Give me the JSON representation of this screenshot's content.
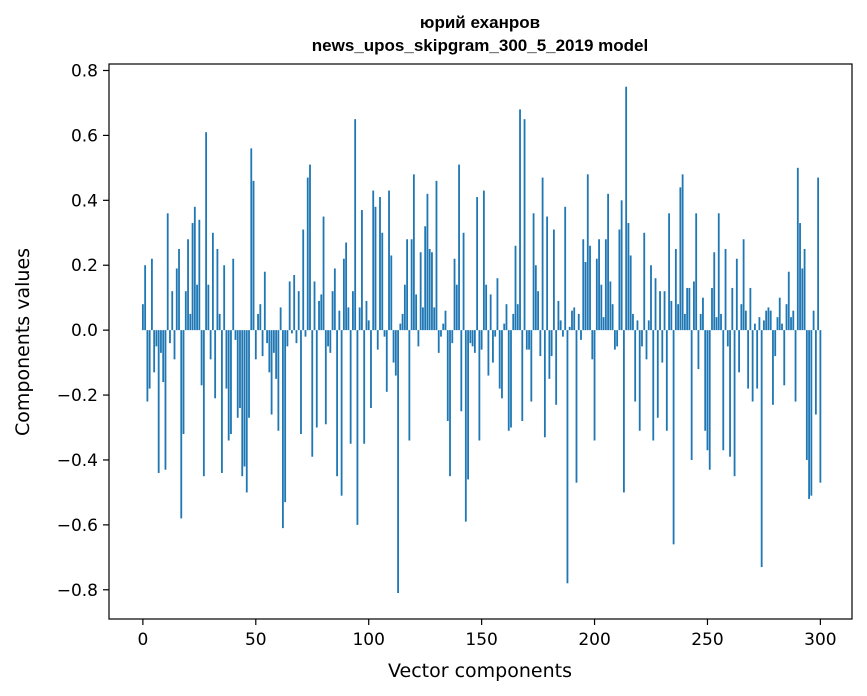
{
  "chart_data": {
    "type": "bar",
    "title_line1": "юрий еханров",
    "title_line2": "news_upos_skipgram_300_5_2019 model",
    "xlabel": "Vector components",
    "ylabel": "Components values",
    "xlim": [
      -15,
      314
    ],
    "ylim": [
      -0.89,
      0.82
    ],
    "xticks": [
      0,
      50,
      100,
      150,
      200,
      250,
      300
    ],
    "yticks": [
      -0.8,
      -0.6,
      -0.4,
      -0.2,
      0.0,
      0.2,
      0.4,
      0.6,
      0.8
    ],
    "ytick_labels": [
      "−0.8",
      "−0.6",
      "−0.4",
      "−0.2",
      "0.0",
      "0.2",
      "0.4",
      "0.6",
      "0.8"
    ],
    "bar_color": "#1f77b4",
    "values": [
      0.08,
      0.2,
      -0.22,
      -0.18,
      0.22,
      -0.13,
      -0.05,
      -0.44,
      -0.07,
      -0.16,
      -0.43,
      0.36,
      -0.04,
      0.12,
      -0.09,
      0.19,
      0.25,
      -0.58,
      -0.32,
      0.12,
      0.28,
      0.05,
      0.33,
      0.38,
      0.14,
      0.34,
      -0.17,
      -0.45,
      0.61,
      0.14,
      -0.09,
      0.3,
      -0.21,
      0.25,
      0.05,
      -0.44,
      0.2,
      -0.18,
      -0.34,
      -0.32,
      0.22,
      -0.03,
      -0.27,
      -0.24,
      -0.45,
      -0.42,
      -0.5,
      -0.27,
      0.56,
      0.46,
      -0.09,
      0.05,
      0.08,
      -0.08,
      0.18,
      -0.04,
      -0.13,
      -0.26,
      -0.07,
      -0.15,
      -0.31,
      0.07,
      -0.61,
      -0.53,
      -0.05,
      0.15,
      -0.01,
      0.17,
      -0.04,
      0.12,
      -0.32,
      0.31,
      -0.02,
      0.47,
      0.51,
      -0.39,
      0.15,
      -0.3,
      0.09,
      0.11,
      0.35,
      -0.29,
      -0.05,
      -0.07,
      0.12,
      0.19,
      -0.45,
      0.06,
      -0.51,
      0.22,
      0.27,
      0.07,
      -0.35,
      0.12,
      0.65,
      -0.6,
      0.07,
      0.37,
      -0.35,
      0.09,
      0.03,
      -0.24,
      0.43,
      0.38,
      -0.06,
      0.41,
      0.3,
      -0.02,
      -0.19,
      0.43,
      0.23,
      -0.1,
      -0.14,
      -0.81,
      0.02,
      0.05,
      0.14,
      0.28,
      -0.34,
      0.28,
      0.48,
      0.11,
      -0.05,
      0.24,
      0.07,
      0.32,
      0.42,
      0.25,
      0.24,
      0.07,
      0.46,
      -0.07,
      -0.02,
      0.02,
      0.06,
      -0.28,
      -0.45,
      -0.04,
      0.22,
      0.14,
      0.51,
      -0.25,
      0.3,
      -0.59,
      -0.46,
      -0.04,
      -0.05,
      -0.07,
      0.41,
      -0.34,
      -0.06,
      0.43,
      0.14,
      -0.14,
      0.11,
      -0.1,
      -0.02,
      0.16,
      -0.18,
      -0.21,
      0.02,
      0.08,
      -0.31,
      -0.3,
      0.05,
      0.26,
      0.08,
      0.68,
      -0.28,
      0.65,
      -0.06,
      -0.06,
      -0.22,
      0.36,
      0.2,
      0.12,
      -0.08,
      0.47,
      -0.33,
      0.35,
      -0.15,
      -0.08,
      0.31,
      -0.23,
      0.09,
      0.03,
      -0.02,
      0.38,
      -0.78,
      0.01,
      0.06,
      0.07,
      -0.47,
      0.05,
      -0.03,
      0.28,
      0.21,
      0.48,
      0.26,
      -0.09,
      -0.34,
      0.22,
      0.28,
      0.14,
      0.04,
      0.28,
      0.42,
      0.15,
      0.08,
      -0.06,
      -0.05,
      0.31,
      0.4,
      -0.5,
      0.75,
      0.33,
      0.23,
      0.05,
      -0.22,
      0.03,
      -0.31,
      -0.05,
      0.3,
      -0.09,
      0.03,
      0.2,
      -0.34,
      0.16,
      -0.27,
      0.12,
      -0.1,
      0.12,
      -0.31,
      0.36,
      0.09,
      -0.66,
      0.25,
      0.08,
      0.44,
      0.48,
      0.05,
      0.13,
      0.13,
      -0.4,
      0.15,
      0.36,
      -0.12,
      0.05,
      0.1,
      -0.31,
      -0.37,
      -0.43,
      0.13,
      0.24,
      0.04,
      0.36,
      0.05,
      -0.37,
      0.25,
      -0.05,
      -0.39,
      0.13,
      -0.45,
      0.22,
      -0.13,
      0.08,
      0.28,
      0.06,
      -0.18,
      0.13,
      -0.22,
      0.02,
      -0.18,
      0.04,
      -0.73,
      0.03,
      0.06,
      0.07,
      0.06,
      -0.23,
      -0.08,
      0.04,
      0.1,
      0.02,
      -0.17,
      0.08,
      0.18,
      0.04,
      0.06,
      -0.22,
      0.5,
      0.33,
      0.19,
      0.25,
      -0.4,
      -0.52,
      -0.51,
      0.06,
      -0.26,
      0.47,
      -0.47
    ]
  }
}
